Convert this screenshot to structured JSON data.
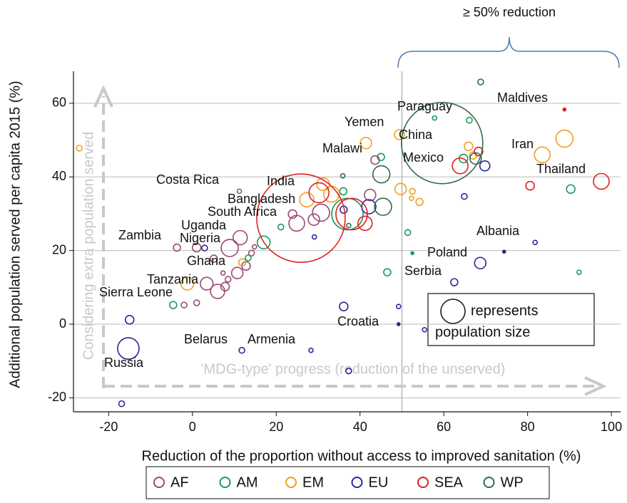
{
  "chart_data": {
    "type": "scatter",
    "x_label": "Reduction of the proportion without access to improved sanitation (%)",
    "y_label": "Additional population served per capita 2015 (%)",
    "xlim": [
      -28.4,
      102.2
    ],
    "ylim": [
      -23.8,
      68.7
    ],
    "xticks": [
      -20,
      0,
      20,
      40,
      60,
      80,
      100
    ],
    "yticks": [
      -20,
      0,
      20,
      40,
      60
    ],
    "grid": true,
    "reference_x": 50,
    "reference_label": "≥ 50% reduction",
    "arrow_y_label": "Considering extra population served",
    "arrow_x_label": "'MDG-type' progress (reduction of the unserved)",
    "size_legend": [
      "represents",
      "population size"
    ],
    "legend_position": "bottom",
    "country_labels": [
      "Maldives",
      "Paraguay",
      "Yemen",
      "China",
      "Iran",
      "Malawi",
      "Mexico",
      "Thailand",
      "Costa Rica",
      "India",
      "Bangladesh",
      "South Africa",
      "Uganda",
      "Albania",
      "Zambia",
      "Nigeria",
      "Poland",
      "Ghana",
      "Serbia",
      "Tanzania",
      "Sierra Leone",
      "Croatia",
      "Belarus",
      "Armenia",
      "Russia"
    ],
    "series": [
      {
        "name": "AF",
        "color": "#9a4a72",
        "x": [
          -3.7,
          1.0,
          8.9,
          11.4,
          5.1,
          6.0,
          3.4,
          7.8,
          10.7,
          12.8,
          -2.0,
          1.0,
          23.9,
          24.9,
          30.7,
          29.0,
          42.4,
          43.6,
          14.1,
          14.8,
          8.5,
          7.3
        ],
        "y": [
          20.8,
          20.8,
          20.7,
          23.5,
          17.8,
          8.9,
          11.0,
          10.2,
          13.9,
          15.8,
          5.2,
          5.8,
          29.9,
          27.4,
          30.3,
          28.4,
          35.1,
          44.6,
          19.3,
          21.0,
          12.2,
          13.9
        ],
        "sizes": [
          9,
          13,
          52,
          36,
          9,
          36,
          29,
          13,
          23,
          13,
          5.8,
          5.8,
          13,
          44,
          52,
          23,
          23,
          13,
          5.8,
          3.3,
          5.8,
          3.3
        ]
      },
      {
        "name": "AM",
        "color": "#1a9a5a",
        "x": [
          17.0,
          11.2,
          13.3,
          21.1,
          37.0,
          45.0,
          36.0,
          51.4,
          46.5,
          57.8,
          66.1,
          90.3,
          92.3,
          64.7,
          -4.6,
          52.5
        ],
        "y": [
          22.2,
          36.1,
          18.0,
          26.4,
          29.9,
          45.4,
          36.1,
          24.9,
          14.1,
          56.0,
          55.4,
          36.7,
          14.1,
          45.0,
          5.2,
          19.3
        ],
        "sizes": [
          29,
          3.3,
          5.8,
          5.8,
          176,
          9,
          9,
          5.8,
          9,
          3.3,
          5.8,
          13,
          3.3,
          13,
          9,
          1.5
        ]
      },
      {
        "name": "EM",
        "color": "#f0a020",
        "x": [
          -27.0,
          41.4,
          49.4,
          49.7,
          52.5,
          54.2,
          52.3,
          65.9,
          67.0,
          83.5,
          88.8,
          31.2,
          33.2,
          27.3,
          -1.2,
          11.9
        ],
        "y": [
          47.8,
          49.2,
          51.5,
          36.7,
          36.1,
          33.2,
          34.2,
          48.3,
          45.8,
          46.0,
          50.4,
          38.0,
          35.3,
          33.8,
          11.0,
          16.8
        ],
        "sizes": [
          5.8,
          23,
          18,
          23,
          5.8,
          9,
          3.3,
          13,
          9,
          44,
          52,
          29,
          44,
          36,
          29,
          9
        ]
      },
      {
        "name": "EU",
        "color": "#2a2a9a",
        "x": [
          -15.3,
          -15.0,
          -16.9,
          11.8,
          28.3,
          36.1,
          37.3,
          49.2,
          49.2,
          55.4,
          62.5,
          68.7,
          81.8,
          74.4,
          69.8,
          64.9,
          42.1,
          36.1,
          29.1,
          2.9
        ],
        "y": [
          -6.6,
          1.2,
          -21.6,
          -7.1,
          -7.1,
          4.8,
          -12.7,
          4.8,
          0.0,
          -1.5,
          11.4,
          16.6,
          22.2,
          19.7,
          43.0,
          34.7,
          31.9,
          31.1,
          23.7,
          20.7
        ],
        "sizes": [
          82,
          13,
          5.8,
          5.8,
          3.3,
          13,
          5.8,
          3.3,
          1.5,
          3.3,
          9,
          23,
          3.3,
          1.5,
          18,
          5.8,
          36,
          9,
          3.3,
          5.8
        ]
      },
      {
        "name": "SEA",
        "color": "#e02020",
        "x": [
          25.9,
          38.0,
          30.2,
          63.9,
          68.3,
          80.6,
          97.6,
          88.8,
          41.2
        ],
        "y": [
          28.8,
          29.9,
          35.7,
          43.0,
          46.9,
          37.6,
          38.8,
          58.3,
          27.4
        ],
        "sizes": [
          1395,
          176,
          71,
          44,
          13,
          13,
          44,
          1.5,
          36
        ]
      },
      {
        "name": "WP",
        "color": "#2f6a50",
        "x": [
          59.6,
          45.1,
          45.5,
          67.6,
          68.8,
          35.9,
          37.3
        ],
        "y": [
          49.2,
          40.7,
          31.9,
          45.0,
          65.8,
          40.3,
          26.8
        ],
        "sizes": [
          1180,
          52,
          52,
          23,
          5.8,
          3.3,
          3.3
        ]
      }
    ]
  }
}
